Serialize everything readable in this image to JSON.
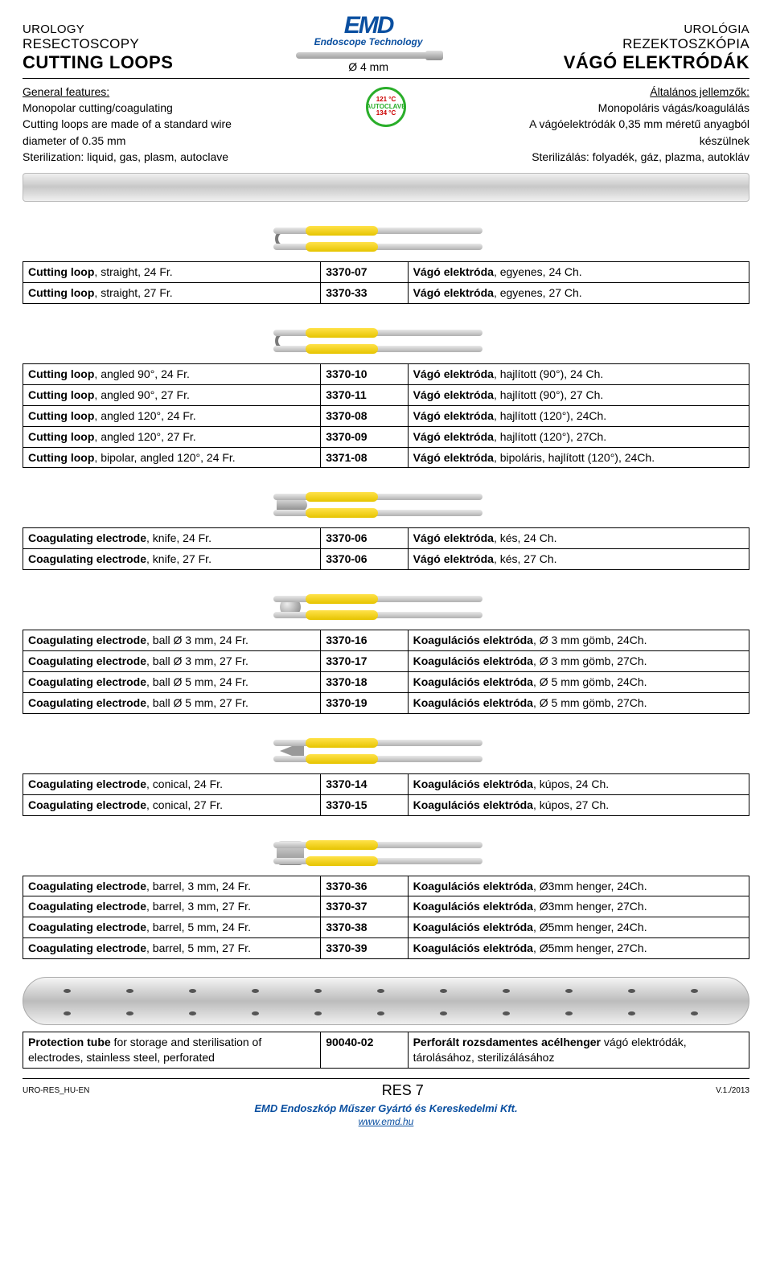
{
  "header": {
    "left": {
      "l1": "UROLOGY",
      "l2": "RESECTOSCOPY",
      "l3": "CUTTING LOOPS"
    },
    "right": {
      "l1": "UROLÓGIA",
      "l2": "REZEKTOSZKÓPIA",
      "l3": "VÁGÓ ELEKTRÓDÁK"
    },
    "logo": {
      "main": "EMD",
      "sub": "Endoscope Technology"
    },
    "diameter": "Ø 4 mm"
  },
  "features": {
    "left_title": "General features:",
    "right_title": "Általános jellemzők:",
    "left_lines": [
      "Monopolar cutting/coagulating",
      "Cutting loops are made of a standard wire",
      "diameter of 0.35 mm",
      "Sterilization: liquid, gas, plasm, autoclave"
    ],
    "right_lines": [
      "Monopoláris vágás/koagulálás",
      "A vágóelektródák 0,35 mm méretű anyagból",
      "készülnek",
      "Sterilizálás: folyadék, gáz, plazma, autokláv"
    ],
    "badge": {
      "l1": "121 °C",
      "l2": "AUTOCLAVE",
      "l3": "134 °C"
    }
  },
  "t1": [
    {
      "en_b": "Cutting loop",
      "en_r": ", straight, 24 Fr.",
      "code": "3370-07",
      "hu_b": "Vágó elektróda",
      "hu_r": ", egyenes, 24 Ch."
    },
    {
      "en_b": "Cutting loop",
      "en_r": ", straight, 27 Fr.",
      "code": "3370-33",
      "hu_b": "Vágó elektróda",
      "hu_r": ", egyenes, 27 Ch."
    }
  ],
  "t2": [
    {
      "en_b": "Cutting loop",
      "en_r": ", angled 90°, 24 Fr.",
      "code": "3370-10",
      "hu_b": "Vágó elektróda",
      "hu_r": ", hajlított (90°), 24 Ch."
    },
    {
      "en_b": "Cutting loop",
      "en_r": ", angled 90°, 27 Fr.",
      "code": "3370-11",
      "hu_b": "Vágó elektróda",
      "hu_r": ", hajlított (90°), 27 Ch."
    },
    {
      "en_b": "Cutting loop",
      "en_r": ", angled 120°, 24 Fr.",
      "code": "3370-08",
      "hu_b": "Vágó elektróda",
      "hu_r": ", hajlított (120°),  24Ch."
    },
    {
      "en_b": "Cutting loop",
      "en_r": ", angled 120°, 27 Fr.",
      "code": "3370-09",
      "hu_b": "Vágó elektróda",
      "hu_r": ", hajlított (120°),  27Ch."
    },
    {
      "en_b": "Cutting loop",
      "en_r": ", bipolar, angled 120°, 24 Fr.",
      "code": "3371-08",
      "hu_b": "Vágó elektróda",
      "hu_r": ", bipoláris, hajlított (120°), 24Ch."
    }
  ],
  "t3": [
    {
      "en_b": "Coagulating electrode",
      "en_r": ", knife, 24 Fr.",
      "code": "3370-06",
      "hu_b": "Vágó elektróda",
      "hu_r": ", kés, 24 Ch."
    },
    {
      "en_b": "Coagulating electrode",
      "en_r": ", knife, 27 Fr.",
      "code": "3370-06",
      "hu_b": "Vágó elektróda",
      "hu_r": ", kés, 27 Ch."
    }
  ],
  "t4": [
    {
      "en_b": "Coagulating electrode",
      "en_r": ", ball Ø 3 mm, 24 Fr.",
      "code": "3370-16",
      "hu_b": "Koagulációs elektróda",
      "hu_r": ", Ø 3 mm gömb, 24Ch."
    },
    {
      "en_b": "Coagulating electrode",
      "en_r": ", ball Ø 3 mm, 27 Fr.",
      "code": "3370-17",
      "hu_b": "Koagulációs elektróda",
      "hu_r": ", Ø 3 mm gömb, 27Ch."
    },
    {
      "en_b": "Coagulating electrode",
      "en_r": ", ball Ø 5 mm, 24 Fr.",
      "code": "3370-18",
      "hu_b": "Koagulációs elektróda",
      "hu_r": ", Ø 5 mm gömb, 24Ch."
    },
    {
      "en_b": "Coagulating electrode",
      "en_r": ", ball Ø 5 mm, 27 Fr.",
      "code": "3370-19",
      "hu_b": "Koagulációs elektróda",
      "hu_r": ", Ø 5 mm gömb, 27Ch."
    }
  ],
  "t5": [
    {
      "en_b": "Coagulating electrode",
      "en_r": ", conical, 24 Fr.",
      "code": "3370-14",
      "hu_b": "Koagulációs elektróda",
      "hu_r": ", kúpos, 24 Ch."
    },
    {
      "en_b": "Coagulating electrode",
      "en_r": ", conical, 27 Fr.",
      "code": "3370-15",
      "hu_b": "Koagulációs elektróda",
      "hu_r": ", kúpos, 27 Ch."
    }
  ],
  "t6": [
    {
      "en_b": "Coagulating electrode",
      "en_r": ", barrel, 3 mm, 24 Fr.",
      "code": "3370-36",
      "hu_b": "Koagulációs elektróda",
      "hu_r": ", Ø3mm henger, 24Ch."
    },
    {
      "en_b": "Coagulating electrode",
      "en_r": ", barrel, 3 mm, 27 Fr.",
      "code": "3370-37",
      "hu_b": "Koagulációs elektróda",
      "hu_r": ", Ø3mm henger, 27Ch."
    },
    {
      "en_b": "Coagulating electrode",
      "en_r": ", barrel, 5 mm, 24 Fr.",
      "code": "3370-38",
      "hu_b": "Koagulációs elektróda",
      "hu_r": ", Ø5mm henger, 24Ch."
    },
    {
      "en_b": "Coagulating electrode",
      "en_r": ", barrel, 5 mm, 27 Fr.",
      "code": "3370-39",
      "hu_b": "Koagulációs elektróda",
      "hu_r": ", Ø5mm henger, 27Ch."
    }
  ],
  "t7": [
    {
      "en_b": "Protection tube",
      "en_r": " for storage and sterilisation of electrodes,  stainless steel, perforated",
      "code": "90040-02",
      "hu_b": "Perforált rozsdamentes acélhenger",
      "hu_r": " vágó elektródák, tárolásához, sterilizálásához"
    }
  ],
  "footer": {
    "left": "URO-RES_HU-EN",
    "center": "RES 7",
    "right": "V.1./2013",
    "company": "EMD Endoszkóp Műszer Gyártó és Kereskedelmi Kft.",
    "url": "www.emd.hu"
  }
}
